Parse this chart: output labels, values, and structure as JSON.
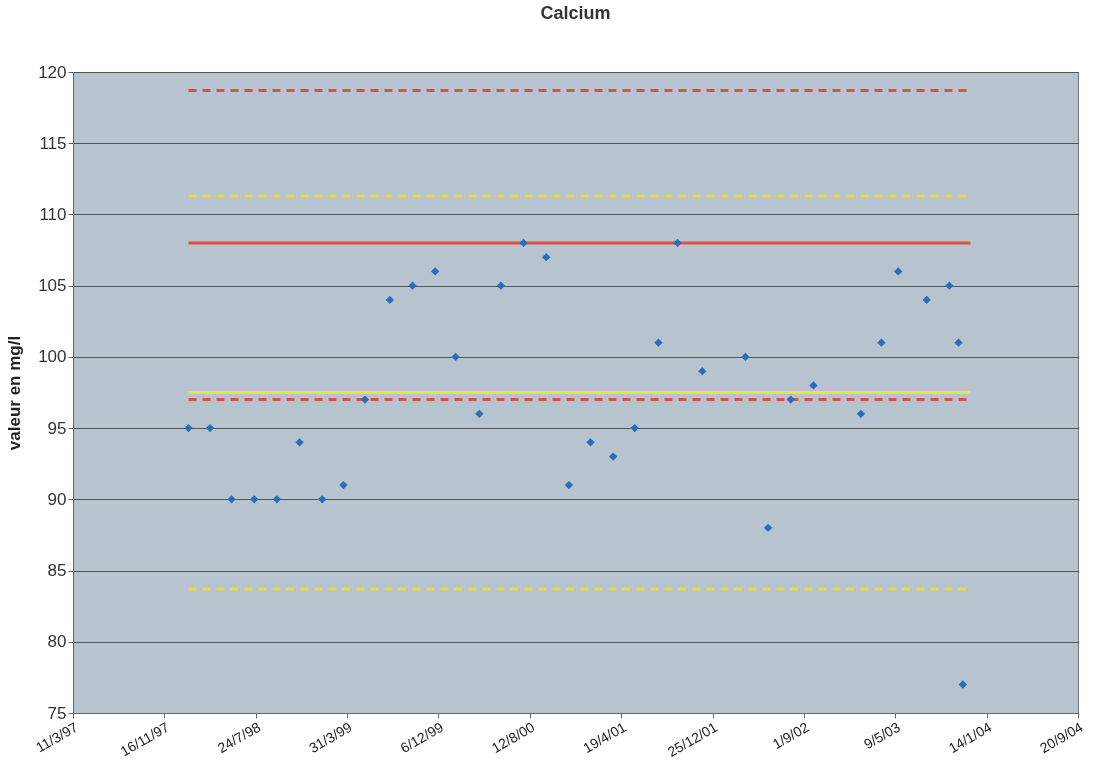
{
  "chart_data": {
    "type": "scatter",
    "title": "Calcium",
    "ylabel": "valeur en mg/l",
    "x": [
      "1998-01-21",
      "1998-03-21",
      "1998-05-19",
      "1998-07-20",
      "1998-09-20",
      "1998-11-21",
      "1999-01-22",
      "1999-03-21",
      "1999-05-19",
      "1999-07-26",
      "1999-09-26",
      "1999-11-27",
      "2000-01-22",
      "2000-03-27",
      "2000-05-25",
      "2000-07-26",
      "2000-09-26",
      "2000-11-27",
      "2001-01-25",
      "2001-03-28",
      "2001-05-26",
      "2001-07-30",
      "2001-09-20",
      "2001-11-27",
      "2002-03-25",
      "2002-05-26",
      "2002-07-27",
      "2002-09-27",
      "2003-02-04",
      "2003-04-01",
      "2003-05-17",
      "2003-08-03",
      "2003-10-04",
      "2003-10-29",
      "2003-11-10"
    ],
    "series": [
      {
        "marker": "diamond",
        "color": "#2a6ebb",
        "values": [
          95,
          95,
          90,
          90,
          90,
          94,
          90,
          91,
          97,
          104,
          105,
          106,
          100,
          96,
          105,
          108,
          107,
          91,
          94,
          93,
          95,
          101,
          108,
          99,
          100,
          88,
          97,
          98,
          96,
          101,
          106,
          104,
          105,
          101,
          77
        ]
      },
      {
        "type": "line",
        "line_style": "dashed",
        "color": "#e0503c",
        "x": [
          "1998-01-21",
          "2003-12-01"
        ],
        "values": [
          118.7,
          118.7
        ]
      },
      {
        "type": "line",
        "line_style": "dashed",
        "color": "#e8d84a",
        "x": [
          "1998-01-21",
          "2003-12-01"
        ],
        "values": [
          111.3,
          111.3
        ]
      },
      {
        "type": "line",
        "line_style": "solid",
        "color": "#e0503c",
        "x": [
          "1998-01-21",
          "2003-12-01"
        ],
        "values": [
          108,
          108
        ]
      },
      {
        "type": "line",
        "line_style": "solid",
        "color": "#f0e040",
        "x": [
          "1998-01-21",
          "2003-12-01"
        ],
        "values": [
          97.5,
          97.5
        ]
      },
      {
        "type": "line",
        "line_style": "dashed",
        "color": "#e0503c",
        "x": [
          "1998-01-21",
          "2003-12-01"
        ],
        "values": [
          97,
          97
        ]
      },
      {
        "type": "line",
        "line_style": "dashed",
        "color": "#e8d84a",
        "x": [
          "1998-01-21",
          "2003-12-01"
        ],
        "values": [
          83.7,
          83.7
        ]
      }
    ],
    "grid": "y",
    "xlim": [
      "1997-03-11",
      "2004-09-20"
    ],
    "xticks": [
      {
        "value": "1997-03-11",
        "label": "11/3/97"
      },
      {
        "value": "1997-11-16",
        "label": "16/11/97"
      },
      {
        "value": "1998-07-24",
        "label": "24/7/98"
      },
      {
        "value": "1999-03-31",
        "label": "31/3/99"
      },
      {
        "value": "1999-12-06",
        "label": "6/12/99"
      },
      {
        "value": "2000-08-12",
        "label": "12/8/00"
      },
      {
        "value": "2001-04-19",
        "label": "19/4/01"
      },
      {
        "value": "2001-12-25",
        "label": "25/12/01"
      },
      {
        "value": "2002-09-01",
        "label": "1/9/02"
      },
      {
        "value": "2003-05-09",
        "label": "9/5/03"
      },
      {
        "value": "2004-01-14",
        "label": "14/1/04"
      },
      {
        "value": "2004-09-20",
        "label": "20/9/04"
      }
    ],
    "ylim": [
      75,
      120
    ],
    "yticks": [
      75,
      80,
      85,
      90,
      95,
      100,
      105,
      110,
      115,
      120
    ]
  }
}
